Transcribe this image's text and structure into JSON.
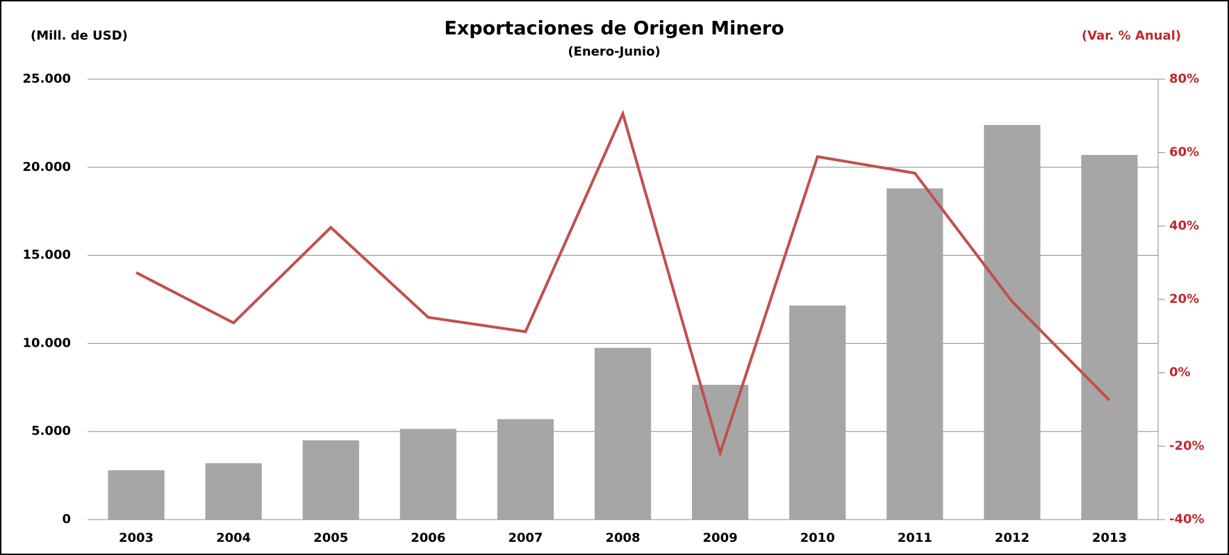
{
  "chart_data": {
    "type": "bar",
    "title": "Exportaciones de Origen Minero",
    "subtitle": "(Enero-Junio)",
    "y_label": "(Mill. de USD)",
    "y2_label": "(Var. % Anual)",
    "categories": [
      "2003",
      "2004",
      "2005",
      "2006",
      "2007",
      "2008",
      "2009",
      "2010",
      "2011",
      "2012",
      "2013"
    ],
    "series": [
      {
        "type": "bar",
        "color": "#a6a6a6",
        "values": [
          2800,
          3200,
          4500,
          5150,
          5700,
          9750,
          7650,
          12150,
          18800,
          22400,
          20700
        ]
      },
      {
        "type": "line",
        "axis": "y2",
        "color": "#c0504d",
        "values": [
          27.3,
          13.6,
          39.6,
          15.1,
          11.2,
          70.6,
          -21.9,
          58.9,
          54.4,
          19.4,
          -7.5
        ]
      }
    ],
    "ylim": [
      0,
      25000
    ],
    "yticks": [
      0,
      {
        "value": 5000,
        "label": "5.000"
      },
      {
        "value": 10000,
        "label": "10.000"
      },
      {
        "value": 15000,
        "label": "15.000"
      },
      {
        "value": 20000,
        "label": "20.000"
      },
      {
        "value": 25000,
        "label": "25.000"
      }
    ],
    "y2lim": [
      -40,
      80
    ],
    "y2ticks": [
      {
        "value": -40,
        "label": "-40%"
      },
      {
        "value": -20,
        "label": "-20%"
      },
      {
        "value": 0,
        "label": "0%"
      },
      {
        "value": 20,
        "label": "20%"
      },
      {
        "value": 40,
        "label": "40%"
      },
      {
        "value": 60,
        "label": "60%"
      },
      {
        "value": 80,
        "label": "80%"
      }
    ],
    "grid": true
  }
}
